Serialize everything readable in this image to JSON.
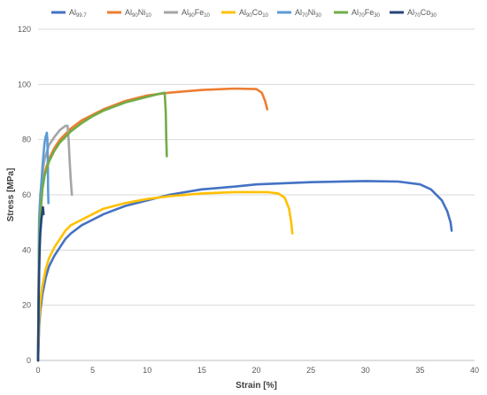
{
  "chart_data": {
    "type": "line",
    "title": "",
    "xlabel": "Strain [%]",
    "ylabel": "Stress [MPa]",
    "xlim": [
      0,
      40
    ],
    "ylim": [
      0,
      120
    ],
    "xticks": [
      0,
      5,
      10,
      15,
      20,
      25,
      30,
      35,
      40
    ],
    "yticks": [
      0,
      20,
      40,
      60,
      80,
      100,
      120
    ],
    "grid": {
      "horizontal": true,
      "vertical": false
    },
    "legend_position": "top",
    "series": [
      {
        "name": "Al99.7",
        "label_main": "Al",
        "label_sub": "99.7",
        "color": "#4472C4",
        "points": [
          [
            0,
            0
          ],
          [
            0.1,
            12
          ],
          [
            0.2,
            18
          ],
          [
            0.4,
            24
          ],
          [
            0.7,
            30
          ],
          [
            1,
            34
          ],
          [
            1.5,
            38
          ],
          [
            2,
            41
          ],
          [
            2.5,
            44
          ],
          [
            3,
            46
          ],
          [
            4,
            49
          ],
          [
            5,
            51
          ],
          [
            6,
            53
          ],
          [
            8,
            56
          ],
          [
            10,
            58
          ],
          [
            12,
            60
          ],
          [
            15,
            62
          ],
          [
            18,
            63
          ],
          [
            20,
            63.8
          ],
          [
            25,
            64.6
          ],
          [
            30,
            65
          ],
          [
            33,
            64.8
          ],
          [
            35,
            63.8
          ],
          [
            36,
            62
          ],
          [
            37,
            58
          ],
          [
            37.5,
            54
          ],
          [
            37.8,
            50
          ],
          [
            37.9,
            47
          ]
        ]
      },
      {
        "name": "Al90Ni10",
        "label_main": "Al",
        "label_sub1": "90",
        "label_mid": "Ni",
        "label_sub2": "10",
        "color": "#ED7D31",
        "points": [
          [
            0,
            0
          ],
          [
            0.1,
            45
          ],
          [
            0.2,
            55
          ],
          [
            0.4,
            63
          ],
          [
            0.6,
            68
          ],
          [
            1,
            73
          ],
          [
            1.5,
            77
          ],
          [
            2,
            80
          ],
          [
            3,
            84
          ],
          [
            4,
            87
          ],
          [
            5,
            89
          ],
          [
            6,
            91
          ],
          [
            8,
            94
          ],
          [
            10,
            96
          ],
          [
            12,
            97
          ],
          [
            15,
            98
          ],
          [
            18,
            98.5
          ],
          [
            20,
            98.3
          ],
          [
            20.5,
            97
          ],
          [
            20.8,
            94
          ],
          [
            21,
            91
          ]
        ]
      },
      {
        "name": "Al90Fe10",
        "label_main": "Al",
        "label_sub1": "90",
        "label_mid": "Fe",
        "label_sub2": "10",
        "color": "#A5A5A5",
        "points": [
          [
            0,
            0
          ],
          [
            0.1,
            52
          ],
          [
            0.2,
            60
          ],
          [
            0.4,
            68
          ],
          [
            0.6,
            73
          ],
          [
            1,
            78
          ],
          [
            1.5,
            81
          ],
          [
            2,
            83.5
          ],
          [
            2.5,
            85
          ],
          [
            2.7,
            85
          ],
          [
            2.8,
            80
          ],
          [
            2.9,
            72
          ],
          [
            3,
            65
          ],
          [
            3.1,
            60
          ]
        ]
      },
      {
        "name": "Al90Co10",
        "label_main": "Al",
        "label_sub1": "90",
        "label_mid": "Co",
        "label_sub2": "10",
        "color": "#FFC000",
        "points": [
          [
            0,
            0
          ],
          [
            0.1,
            15
          ],
          [
            0.2,
            21
          ],
          [
            0.4,
            27
          ],
          [
            0.7,
            33
          ],
          [
            1,
            37
          ],
          [
            1.5,
            41
          ],
          [
            2,
            44
          ],
          [
            2.5,
            47
          ],
          [
            3,
            49
          ],
          [
            4,
            51
          ],
          [
            5,
            53
          ],
          [
            6,
            55
          ],
          [
            8,
            57
          ],
          [
            10,
            58.5
          ],
          [
            12,
            59.5
          ],
          [
            15,
            60.5
          ],
          [
            18,
            61
          ],
          [
            21,
            61
          ],
          [
            22,
            60.5
          ],
          [
            22.6,
            59
          ],
          [
            23,
            55
          ],
          [
            23.2,
            50
          ],
          [
            23.3,
            46
          ]
        ]
      },
      {
        "name": "Al70Ni30",
        "label_main": "Al",
        "label_sub1": "70",
        "label_mid": "Ni",
        "label_sub2": "30",
        "color": "#5B9BD5",
        "points": [
          [
            0,
            0
          ],
          [
            0.1,
            50
          ],
          [
            0.2,
            58
          ],
          [
            0.3,
            64
          ],
          [
            0.4,
            70
          ],
          [
            0.5,
            75
          ],
          [
            0.6,
            79
          ],
          [
            0.7,
            81
          ],
          [
            0.8,
            82.5
          ],
          [
            0.85,
            80
          ],
          [
            0.9,
            70
          ],
          [
            0.92,
            62
          ],
          [
            0.95,
            57
          ]
        ]
      },
      {
        "name": "Al70Fe30",
        "label_main": "Al",
        "label_sub1": "70",
        "label_mid": "Fe",
        "label_sub2": "30",
        "color": "#70AD47",
        "points": [
          [
            0,
            0
          ],
          [
            0.1,
            40
          ],
          [
            0.2,
            52
          ],
          [
            0.4,
            62
          ],
          [
            0.6,
            67
          ],
          [
            1,
            72
          ],
          [
            1.5,
            76
          ],
          [
            2,
            79
          ],
          [
            3,
            83
          ],
          [
            4,
            86
          ],
          [
            5,
            88.5
          ],
          [
            6,
            90.5
          ],
          [
            8,
            93.5
          ],
          [
            10,
            95.5
          ],
          [
            11,
            96.5
          ],
          [
            11.6,
            97
          ],
          [
            11.7,
            90
          ],
          [
            11.75,
            80
          ],
          [
            11.8,
            74
          ]
        ]
      },
      {
        "name": "Al70Co30",
        "label_main": "Al",
        "label_sub1": "70",
        "label_mid": "Co",
        "label_sub2": "30",
        "color": "#264478",
        "points": [
          [
            0,
            0
          ],
          [
            0.05,
            20
          ],
          [
            0.1,
            32
          ],
          [
            0.15,
            40
          ],
          [
            0.2,
            46
          ],
          [
            0.3,
            51
          ],
          [
            0.4,
            54
          ],
          [
            0.45,
            55.5
          ],
          [
            0.5,
            53
          ]
        ]
      }
    ]
  }
}
